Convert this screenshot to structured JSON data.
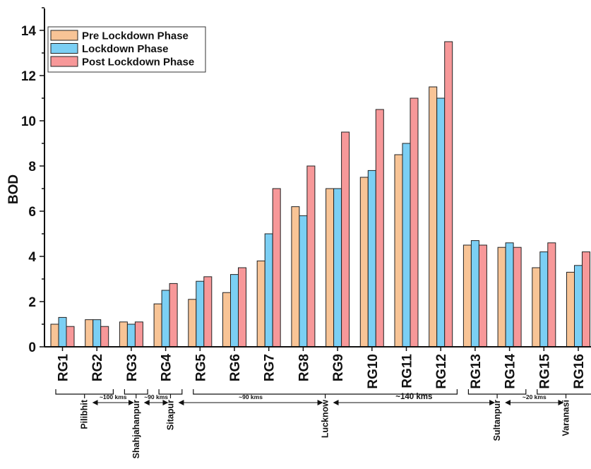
{
  "chart_data": {
    "type": "bar",
    "title": "",
    "xlabel": "",
    "ylabel": "BOD",
    "ylim": [
      0,
      15
    ],
    "yticks": [
      0,
      2,
      4,
      6,
      8,
      10,
      12,
      14
    ],
    "grid": false,
    "legend_position": "top-left",
    "categories": [
      "RG1",
      "RG2",
      "RG3",
      "RG4",
      "RG5",
      "RG6",
      "RG7",
      "RG8",
      "RG9",
      "RG10",
      "RG11",
      "RG12",
      "RG13",
      "RG14",
      "RG15",
      "RG16"
    ],
    "series": [
      {
        "name": "Pre Lockdown Phase",
        "color": "#f8c496",
        "values": [
          1.0,
          1.2,
          1.1,
          1.9,
          2.1,
          2.4,
          3.8,
          6.2,
          7.0,
          7.5,
          8.5,
          11.5,
          4.5,
          4.4,
          3.5,
          3.3
        ]
      },
      {
        "name": "Lockdown Phase",
        "color": "#7bcff4",
        "values": [
          1.3,
          1.2,
          1.0,
          2.5,
          2.9,
          3.2,
          5.0,
          5.8,
          7.0,
          7.8,
          9.0,
          11.0,
          4.7,
          4.6,
          4.2,
          3.6
        ]
      },
      {
        "name": "Post Lockdown Phase",
        "color": "#f79899",
        "values": [
          0.9,
          0.9,
          1.1,
          2.8,
          3.1,
          3.5,
          7.0,
          8.0,
          9.5,
          10.5,
          11.0,
          13.5,
          4.5,
          4.4,
          4.6,
          4.2
        ]
      }
    ]
  },
  "regions": [
    {
      "name": "Pilibhit",
      "first": 0,
      "last": 1
    },
    {
      "name": "Shahjahanpur",
      "first": 2,
      "last": 2
    },
    {
      "name": "Sitapur",
      "first": 3,
      "last": 3
    },
    {
      "name": "Lucknow",
      "first": 4,
      "last": 11
    },
    {
      "name": "Sultanpur",
      "first": 12,
      "last": 13
    },
    {
      "name": "Varanasi",
      "first": 14,
      "last": 15
    }
  ],
  "distances": [
    {
      "label": "~100 kms",
      "from": 0,
      "to": 1
    },
    {
      "label": "~90 kms",
      "from": 1,
      "to": 2
    },
    {
      "label": "~90 kms",
      "from": 2,
      "to": 3
    },
    {
      "label": "~140 kms",
      "from": 3,
      "to": 4
    },
    {
      "label": "~20 kms",
      "from": 4,
      "to": 5
    }
  ],
  "colors": {
    "axis": "#111111",
    "bar_stroke": "#222222",
    "background": "#ffffff"
  }
}
